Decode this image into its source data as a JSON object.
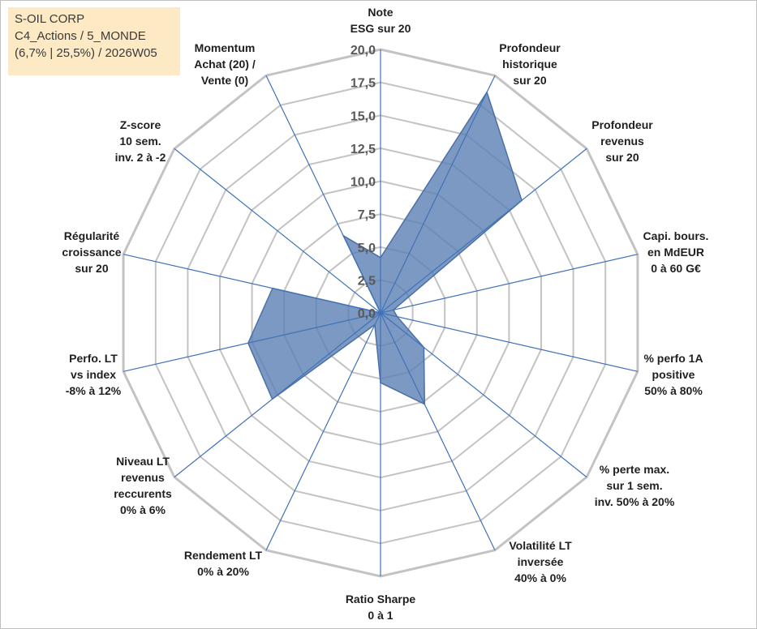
{
  "info": {
    "line1": "S-OIL CORP",
    "line2": "C4_Actions / 5_MONDE",
    "line3": "(6,7% | 25,5%) / 2026W05"
  },
  "colors": {
    "fill": "#5b80b4",
    "fill_opacity": 0.8,
    "stroke": "#4a70a6",
    "grid": "#c3c3c3",
    "spoke": "#3f72b8",
    "tick_text": "#595959"
  },
  "chart_data": {
    "type": "radar",
    "rmin": 0,
    "rmax": 20,
    "tick_step": 2.5,
    "tick_labels": [
      "0,0",
      "2,5",
      "5,0",
      "7,5",
      "10,0",
      "12,5",
      "15,0",
      "17,5",
      "20,0"
    ],
    "axes": [
      {
        "lines": [
          "Note",
          "ESG sur 20"
        ]
      },
      {
        "lines": [
          "Profondeur",
          "historique",
          "sur 20"
        ]
      },
      {
        "lines": [
          "Profondeur",
          "revenus",
          "sur 20"
        ]
      },
      {
        "lines": [
          "Capi. bours.",
          "en MdEUR",
          "0 à 60 G€"
        ]
      },
      {
        "lines": [
          "% perfo 1A",
          "positive",
          "50% à 80%"
        ]
      },
      {
        "lines": [
          "% perte max.",
          "sur 1 sem.",
          "inv. 50% à 20%"
        ]
      },
      {
        "lines": [
          "Volatilité LT",
          "inversée",
          "40% à 0%"
        ]
      },
      {
        "lines": [
          "Ratio Sharpe",
          "0 à 1"
        ]
      },
      {
        "lines": [
          "Rendement LT",
          "0% à 20%"
        ]
      },
      {
        "lines": [
          "Niveau LT",
          "revenus",
          "reccurents",
          "0% à 6%"
        ]
      },
      {
        "lines": [
          "Perfo. LT",
          "vs index",
          "-8% à 12%"
        ]
      },
      {
        "lines": [
          "Régularité",
          "croissance",
          "sur 20"
        ]
      },
      {
        "lines": [
          "Z-score",
          "10 sem.",
          "inv. 2 à -2"
        ]
      },
      {
        "lines": [
          "Momentum",
          "Achat (20) /",
          "Vente (0)"
        ]
      }
    ],
    "series": [
      {
        "name": "S-OIL CORP",
        "values": [
          4.2,
          18.6,
          13.7,
          1.0,
          1.3,
          4.2,
          7.7,
          5.3,
          1.0,
          10.5,
          10.3,
          8.4,
          0.0,
          6.5
        ]
      }
    ]
  }
}
